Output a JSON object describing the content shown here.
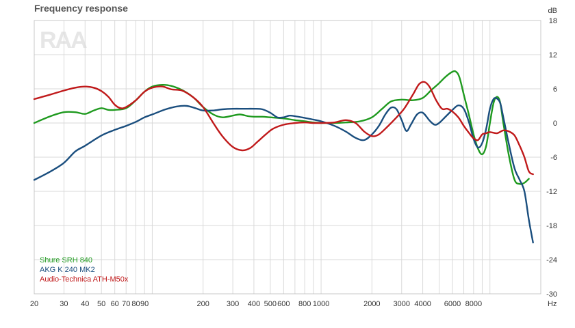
{
  "chart_data": {
    "type": "line",
    "title": "Frequency response",
    "xlabel": "",
    "ylabel": "",
    "x_unit": "Hz",
    "y_unit": "dB",
    "x_scale": "log",
    "xlim": [
      20,
      20000
    ],
    "ylim": [
      -30,
      18
    ],
    "x_ticks": [
      20,
      30,
      40,
      50,
      60,
      70,
      80,
      90,
      200,
      300,
      400,
      500,
      600,
      800,
      1000,
      2000,
      3000,
      4000,
      6000,
      8000
    ],
    "x_tick_labels": [
      "20",
      "30",
      "40",
      "50",
      "60",
      "70",
      "80",
      "90",
      "200",
      "300",
      "400",
      "500",
      "600",
      "800",
      "1000",
      "2000",
      "3000",
      "4000",
      "6000",
      "8000"
    ],
    "x_grid": [
      20,
      30,
      40,
      50,
      60,
      70,
      80,
      90,
      100,
      200,
      300,
      400,
      500,
      600,
      700,
      800,
      900,
      1000,
      2000,
      3000,
      4000,
      5000,
      6000,
      7000,
      8000,
      9000,
      10000,
      20000
    ],
    "y_ticks": [
      18,
      12,
      6,
      0,
      -6,
      -12,
      -18,
      -24,
      -30
    ],
    "y_tick_labels": [
      "18",
      "12",
      "6",
      "0",
      "-6",
      "-12",
      "-18",
      "-24",
      "-30"
    ],
    "grid": true,
    "legend_position": "bottom-left",
    "logo_text": "RAA",
    "series": [
      {
        "name": "Shure SRH 840",
        "color": "#1f9a1f",
        "points": [
          [
            20,
            0
          ],
          [
            25,
            1.2
          ],
          [
            30,
            1.9
          ],
          [
            35,
            1.9
          ],
          [
            40,
            1.6
          ],
          [
            45,
            2.2
          ],
          [
            50,
            2.6
          ],
          [
            55,
            2.3
          ],
          [
            60,
            2.3
          ],
          [
            70,
            2.6
          ],
          [
            80,
            4
          ],
          [
            90,
            5.5
          ],
          [
            100,
            6.4
          ],
          [
            115,
            6.7
          ],
          [
            130,
            6.5
          ],
          [
            150,
            5.8
          ],
          [
            175,
            4.5
          ],
          [
            200,
            2.8
          ],
          [
            230,
            1.5
          ],
          [
            260,
            1
          ],
          [
            300,
            1.3
          ],
          [
            330,
            1.5
          ],
          [
            370,
            1.2
          ],
          [
            400,
            1.1
          ],
          [
            450,
            1.1
          ],
          [
            500,
            1
          ],
          [
            600,
            0.8
          ],
          [
            700,
            0.5
          ],
          [
            800,
            0.3
          ],
          [
            900,
            0.1
          ],
          [
            1000,
            0
          ],
          [
            1200,
            0
          ],
          [
            1400,
            0.1
          ],
          [
            1700,
            0.3
          ],
          [
            2000,
            1
          ],
          [
            2300,
            2.5
          ],
          [
            2600,
            3.8
          ],
          [
            3000,
            4.1
          ],
          [
            3500,
            4
          ],
          [
            4000,
            4.4
          ],
          [
            4500,
            5.8
          ],
          [
            5000,
            7
          ],
          [
            5500,
            8.2
          ],
          [
            6000,
            9
          ],
          [
            6300,
            9
          ],
          [
            6600,
            8
          ],
          [
            7000,
            5
          ],
          [
            7500,
            1.5
          ],
          [
            8000,
            -2
          ],
          [
            8500,
            -4.5
          ],
          [
            9000,
            -5.5
          ],
          [
            9500,
            -4
          ],
          [
            10000,
            0
          ],
          [
            10500,
            3.5
          ],
          [
            11000,
            4.6
          ],
          [
            11500,
            3.6
          ],
          [
            12000,
            0
          ],
          [
            13000,
            -6
          ],
          [
            14000,
            -10
          ],
          [
            15000,
            -10.7
          ],
          [
            16000,
            -10.5
          ],
          [
            17000,
            -9.8
          ]
        ]
      },
      {
        "name": "AKG K 240 MK2",
        "color": "#1a4e7e",
        "points": [
          [
            20,
            -10
          ],
          [
            25,
            -8.5
          ],
          [
            30,
            -7
          ],
          [
            35,
            -5
          ],
          [
            40,
            -4
          ],
          [
            50,
            -2.2
          ],
          [
            60,
            -1.2
          ],
          [
            70,
            -0.5
          ],
          [
            80,
            0.2
          ],
          [
            90,
            1
          ],
          [
            100,
            1.5
          ],
          [
            120,
            2.4
          ],
          [
            140,
            2.9
          ],
          [
            160,
            3
          ],
          [
            180,
            2.6
          ],
          [
            200,
            2.2
          ],
          [
            230,
            2.2
          ],
          [
            260,
            2.4
          ],
          [
            300,
            2.5
          ],
          [
            350,
            2.5
          ],
          [
            400,
            2.5
          ],
          [
            450,
            2.4
          ],
          [
            500,
            1.8
          ],
          [
            550,
            1
          ],
          [
            600,
            1
          ],
          [
            650,
            1.3
          ],
          [
            700,
            1.2
          ],
          [
            800,
            0.9
          ],
          [
            900,
            0.6
          ],
          [
            1000,
            0.3
          ],
          [
            1200,
            -0.5
          ],
          [
            1400,
            -1.5
          ],
          [
            1600,
            -2.6
          ],
          [
            1800,
            -3
          ],
          [
            2000,
            -2
          ],
          [
            2200,
            -0.5
          ],
          [
            2400,
            1.5
          ],
          [
            2600,
            2.7
          ],
          [
            2800,
            2.4
          ],
          [
            3000,
            0.5
          ],
          [
            3200,
            -1.4
          ],
          [
            3400,
            -0.3
          ],
          [
            3700,
            1.5
          ],
          [
            4000,
            1.8
          ],
          [
            4400,
            0.4
          ],
          [
            4700,
            -0.3
          ],
          [
            5000,
            0
          ],
          [
            5500,
            1.2
          ],
          [
            6000,
            2.3
          ],
          [
            6500,
            3.1
          ],
          [
            7000,
            2.5
          ],
          [
            7500,
            0.2
          ],
          [
            8000,
            -2.8
          ],
          [
            8500,
            -4.3
          ],
          [
            9000,
            -3.5
          ],
          [
            9500,
            -1
          ],
          [
            10000,
            2.5
          ],
          [
            10500,
            4.2
          ],
          [
            11000,
            4.3
          ],
          [
            11500,
            3.5
          ],
          [
            12000,
            1
          ],
          [
            13000,
            -4
          ],
          [
            14000,
            -8
          ],
          [
            15000,
            -10
          ],
          [
            16000,
            -12
          ],
          [
            17000,
            -17
          ],
          [
            18000,
            -21
          ]
        ]
      },
      {
        "name": "Audio-Technica ATH-M50x",
        "color": "#c0191a",
        "points": [
          [
            20,
            4.2
          ],
          [
            25,
            5
          ],
          [
            30,
            5.7
          ],
          [
            35,
            6.2
          ],
          [
            40,
            6.4
          ],
          [
            45,
            6.2
          ],
          [
            50,
            5.6
          ],
          [
            55,
            4.6
          ],
          [
            60,
            3.2
          ],
          [
            65,
            2.6
          ],
          [
            70,
            2.8
          ],
          [
            80,
            4
          ],
          [
            90,
            5.5
          ],
          [
            100,
            6.2
          ],
          [
            115,
            6.4
          ],
          [
            130,
            5.9
          ],
          [
            150,
            5.7
          ],
          [
            175,
            4.5
          ],
          [
            200,
            2.8
          ],
          [
            230,
            0
          ],
          [
            260,
            -2.3
          ],
          [
            300,
            -4.2
          ],
          [
            340,
            -4.8
          ],
          [
            380,
            -4.4
          ],
          [
            420,
            -3.3
          ],
          [
            470,
            -2
          ],
          [
            520,
            -1
          ],
          [
            600,
            -0.3
          ],
          [
            700,
            0
          ],
          [
            800,
            0.1
          ],
          [
            900,
            0
          ],
          [
            1000,
            0
          ],
          [
            1200,
            0.1
          ],
          [
            1400,
            0.5
          ],
          [
            1600,
            0
          ],
          [
            1800,
            -1.5
          ],
          [
            2000,
            -2.3
          ],
          [
            2200,
            -2
          ],
          [
            2500,
            -0.5
          ],
          [
            2800,
            1
          ],
          [
            3100,
            2.5
          ],
          [
            3500,
            5
          ],
          [
            3800,
            6.8
          ],
          [
            4100,
            7.2
          ],
          [
            4400,
            6.3
          ],
          [
            4800,
            4
          ],
          [
            5200,
            2.5
          ],
          [
            5600,
            2.5
          ],
          [
            6000,
            2
          ],
          [
            6500,
            1
          ],
          [
            7000,
            -0.5
          ],
          [
            7500,
            -1.7
          ],
          [
            8000,
            -2.7
          ],
          [
            8500,
            -3
          ],
          [
            9000,
            -2
          ],
          [
            9500,
            -1.8
          ],
          [
            10000,
            -1.6
          ],
          [
            11000,
            -1.8
          ],
          [
            12000,
            -1.3
          ],
          [
            13000,
            -1.5
          ],
          [
            14000,
            -2.2
          ],
          [
            15000,
            -4
          ],
          [
            16000,
            -6
          ],
          [
            17000,
            -8.5
          ],
          [
            18000,
            -9
          ]
        ]
      }
    ]
  }
}
